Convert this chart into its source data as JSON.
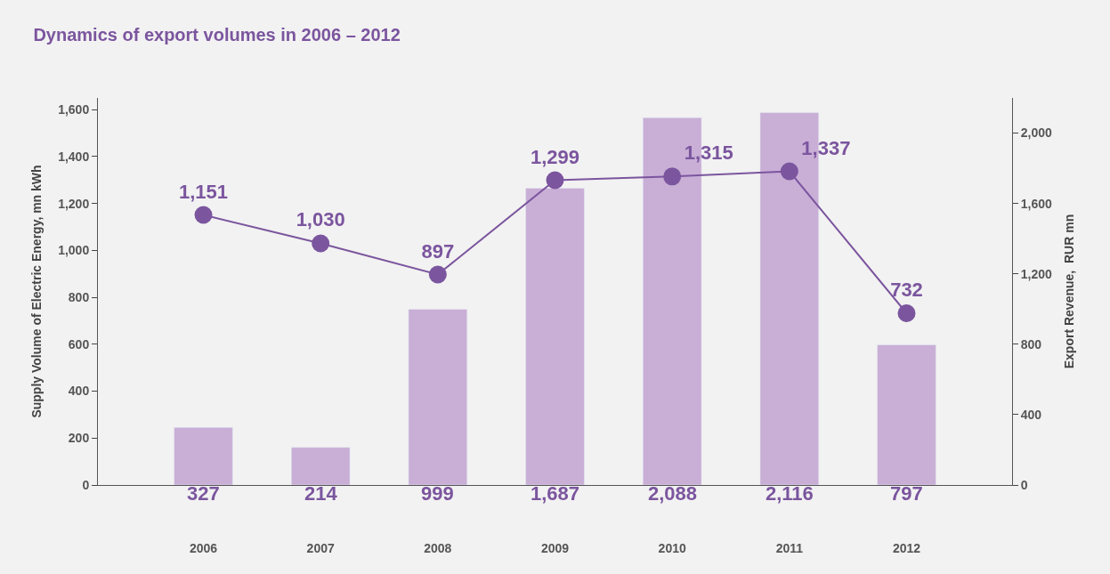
{
  "chart_data": {
    "type": "bar",
    "title": "Dynamics of export volumes in 2006 – 2012",
    "categories": [
      "2006",
      "2007",
      "2008",
      "2009",
      "2010",
      "2011",
      "2012"
    ],
    "series": [
      {
        "axis": "y2",
        "color": "#c9aed6",
        "values": [
          327,
          214,
          999,
          1687,
          2088,
          2116,
          797
        ],
        "value_labels": [
          "327",
          "214",
          "999",
          "1,687",
          "2,088",
          "2,116",
          "797"
        ]
      },
      {
        "type": "line",
        "axis": "y",
        "color": "#7b559e",
        "values": [
          1151,
          1030,
          897,
          1299,
          1315,
          1337,
          732
        ],
        "value_labels": [
          "1,151",
          "1,030",
          "897",
          "1,299",
          "1,315",
          "1,337",
          "732"
        ]
      }
    ],
    "marker": "circle",
    "ylabel": "Supply Volume of Electric Energy, mn kWh",
    "y2label": "Export Revenue,  RUR mn",
    "ylim": [
      0,
      1650
    ],
    "yticks": [
      0,
      200,
      400,
      600,
      800,
      {
        "value": 1000,
        "label": "1,000"
      },
      {
        "value": 1200,
        "label": "1,200"
      },
      {
        "value": 1400,
        "label": "1,400"
      },
      {
        "value": 1600,
        "label": "1,600"
      }
    ],
    "y2lim": [
      0,
      2200
    ],
    "y2ticks": [
      0,
      400,
      800,
      {
        "value": 1200,
        "label": "1,200"
      },
      {
        "value": 1600,
        "label": "1,600"
      },
      {
        "value": 2000,
        "label": "2,000"
      }
    ]
  }
}
